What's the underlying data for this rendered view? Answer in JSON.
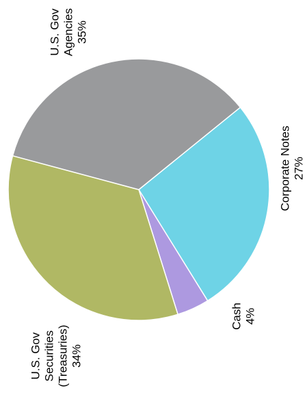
{
  "chart_data": {
    "type": "pie",
    "title": "",
    "orientation": "rotated 90 degrees counter-clockwise",
    "slices": [
      {
        "label": "Corporate Notes",
        "label_lines": [
          "Corporate Notes",
          "27%"
        ],
        "value": 27,
        "color": "#6ed3e6"
      },
      {
        "label": "Cash",
        "label_lines": [
          "Cash",
          "4%"
        ],
        "value": 4,
        "color": "#ad99e0"
      },
      {
        "label": "U.S. Gov Securities (Treasuries)",
        "label_lines": [
          "U.S. Gov",
          "Securities",
          "(Treasuries)",
          "34%"
        ],
        "value": 34,
        "color": "#b0b864"
      },
      {
        "label": "U.S. Gov Agencies",
        "label_lines": [
          "U.S. Gov",
          "Agencies",
          "35%"
        ],
        "value": 35,
        "color": "#999a9c"
      }
    ]
  }
}
